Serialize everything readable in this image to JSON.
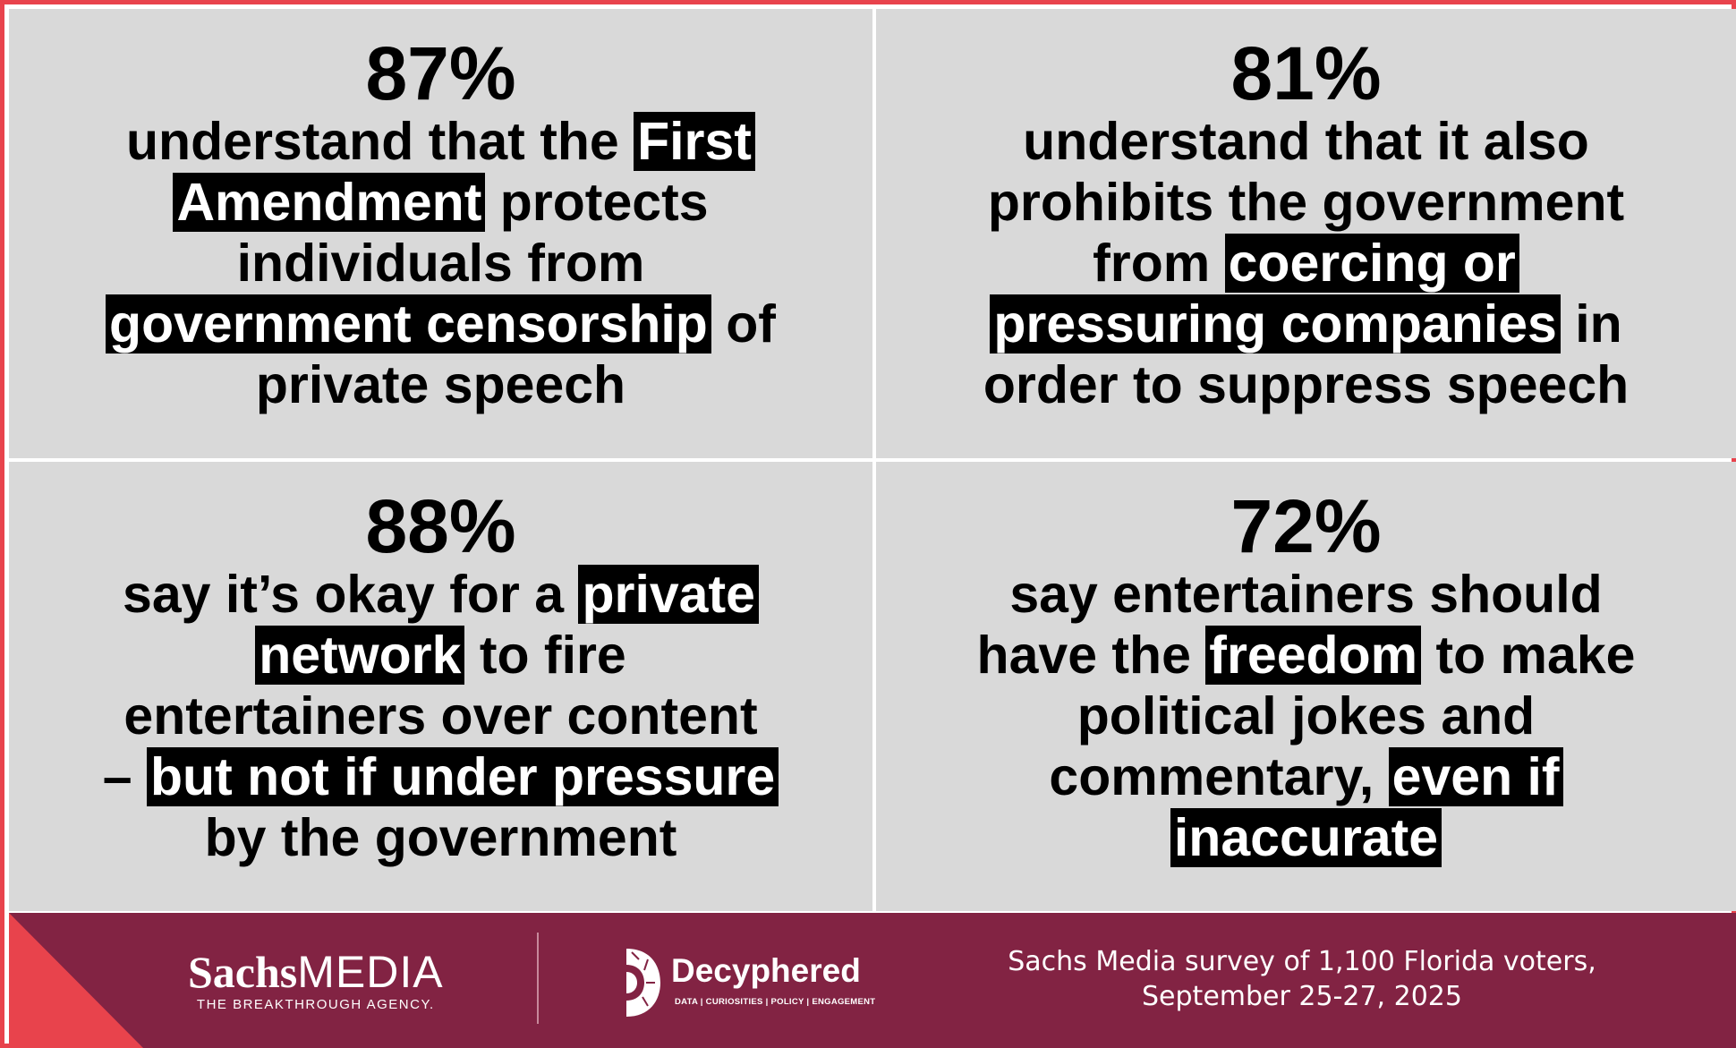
{
  "stats": [
    {
      "percent": "87%",
      "lines": [
        [
          {
            "t": "understand that the "
          },
          {
            "t": "First",
            "hl": true
          }
        ],
        [
          {
            "t": "Amendment",
            "hl": true
          },
          {
            "t": " protects"
          }
        ],
        [
          {
            "t": "individuals from"
          }
        ],
        [
          {
            "t": "government censorship",
            "hl": true
          },
          {
            "t": " of"
          }
        ],
        [
          {
            "t": "private speech"
          }
        ]
      ]
    },
    {
      "percent": "81%",
      "lines": [
        [
          {
            "t": "understand that it also"
          }
        ],
        [
          {
            "t": "prohibits the government"
          }
        ],
        [
          {
            "t": "from "
          },
          {
            "t": "coercing or ",
            "hl": true
          }
        ],
        [
          {
            "t": "pressuring companies",
            "hl": true
          },
          {
            "t": " in"
          }
        ],
        [
          {
            "t": "order to suppress speech"
          }
        ]
      ]
    },
    {
      "percent": "88%",
      "lines": [
        [
          {
            "t": "say it’s okay for a "
          },
          {
            "t": "private ",
            "hl": true
          }
        ],
        [
          {
            "t": "network",
            "hl": true
          },
          {
            "t": " to fire"
          }
        ],
        [
          {
            "t": "entertainers over content"
          }
        ],
        [
          {
            "t": "– "
          },
          {
            "t": "but not if under pressure",
            "hl": true
          }
        ],
        [
          {
            "t": "by the government"
          }
        ]
      ]
    },
    {
      "percent": "72%",
      "lines": [
        [
          {
            "t": "say entertainers should"
          }
        ],
        [
          {
            "t": "have the "
          },
          {
            "t": "freedom",
            "hl": true
          },
          {
            "t": " to make"
          }
        ],
        [
          {
            "t": "political jokes and"
          }
        ],
        [
          {
            "t": "commentary, "
          },
          {
            "t": "even if ",
            "hl": true
          }
        ],
        [
          {
            "t": "inaccurate",
            "hl": true
          }
        ]
      ]
    }
  ],
  "footer": {
    "sachs_logo_word": "Sachs",
    "sachs_logo_media": "MEDIA",
    "sachs_tagline": "THE BREAKTHROUGH AGENCY.",
    "decyphered_name": "Decyphered",
    "decyphered_tagline": "DATA | CURIOSITIES | POLICY | ENGAGEMENT",
    "source_line1": "Sachs Media survey of 1,100 Florida voters,",
    "source_line2": "September 25-27, 2025"
  },
  "colors": {
    "accent_red": "#e8434c",
    "footer_maroon": "#822343",
    "panel_gray": "#d9d9d9",
    "highlight": "#000000"
  }
}
